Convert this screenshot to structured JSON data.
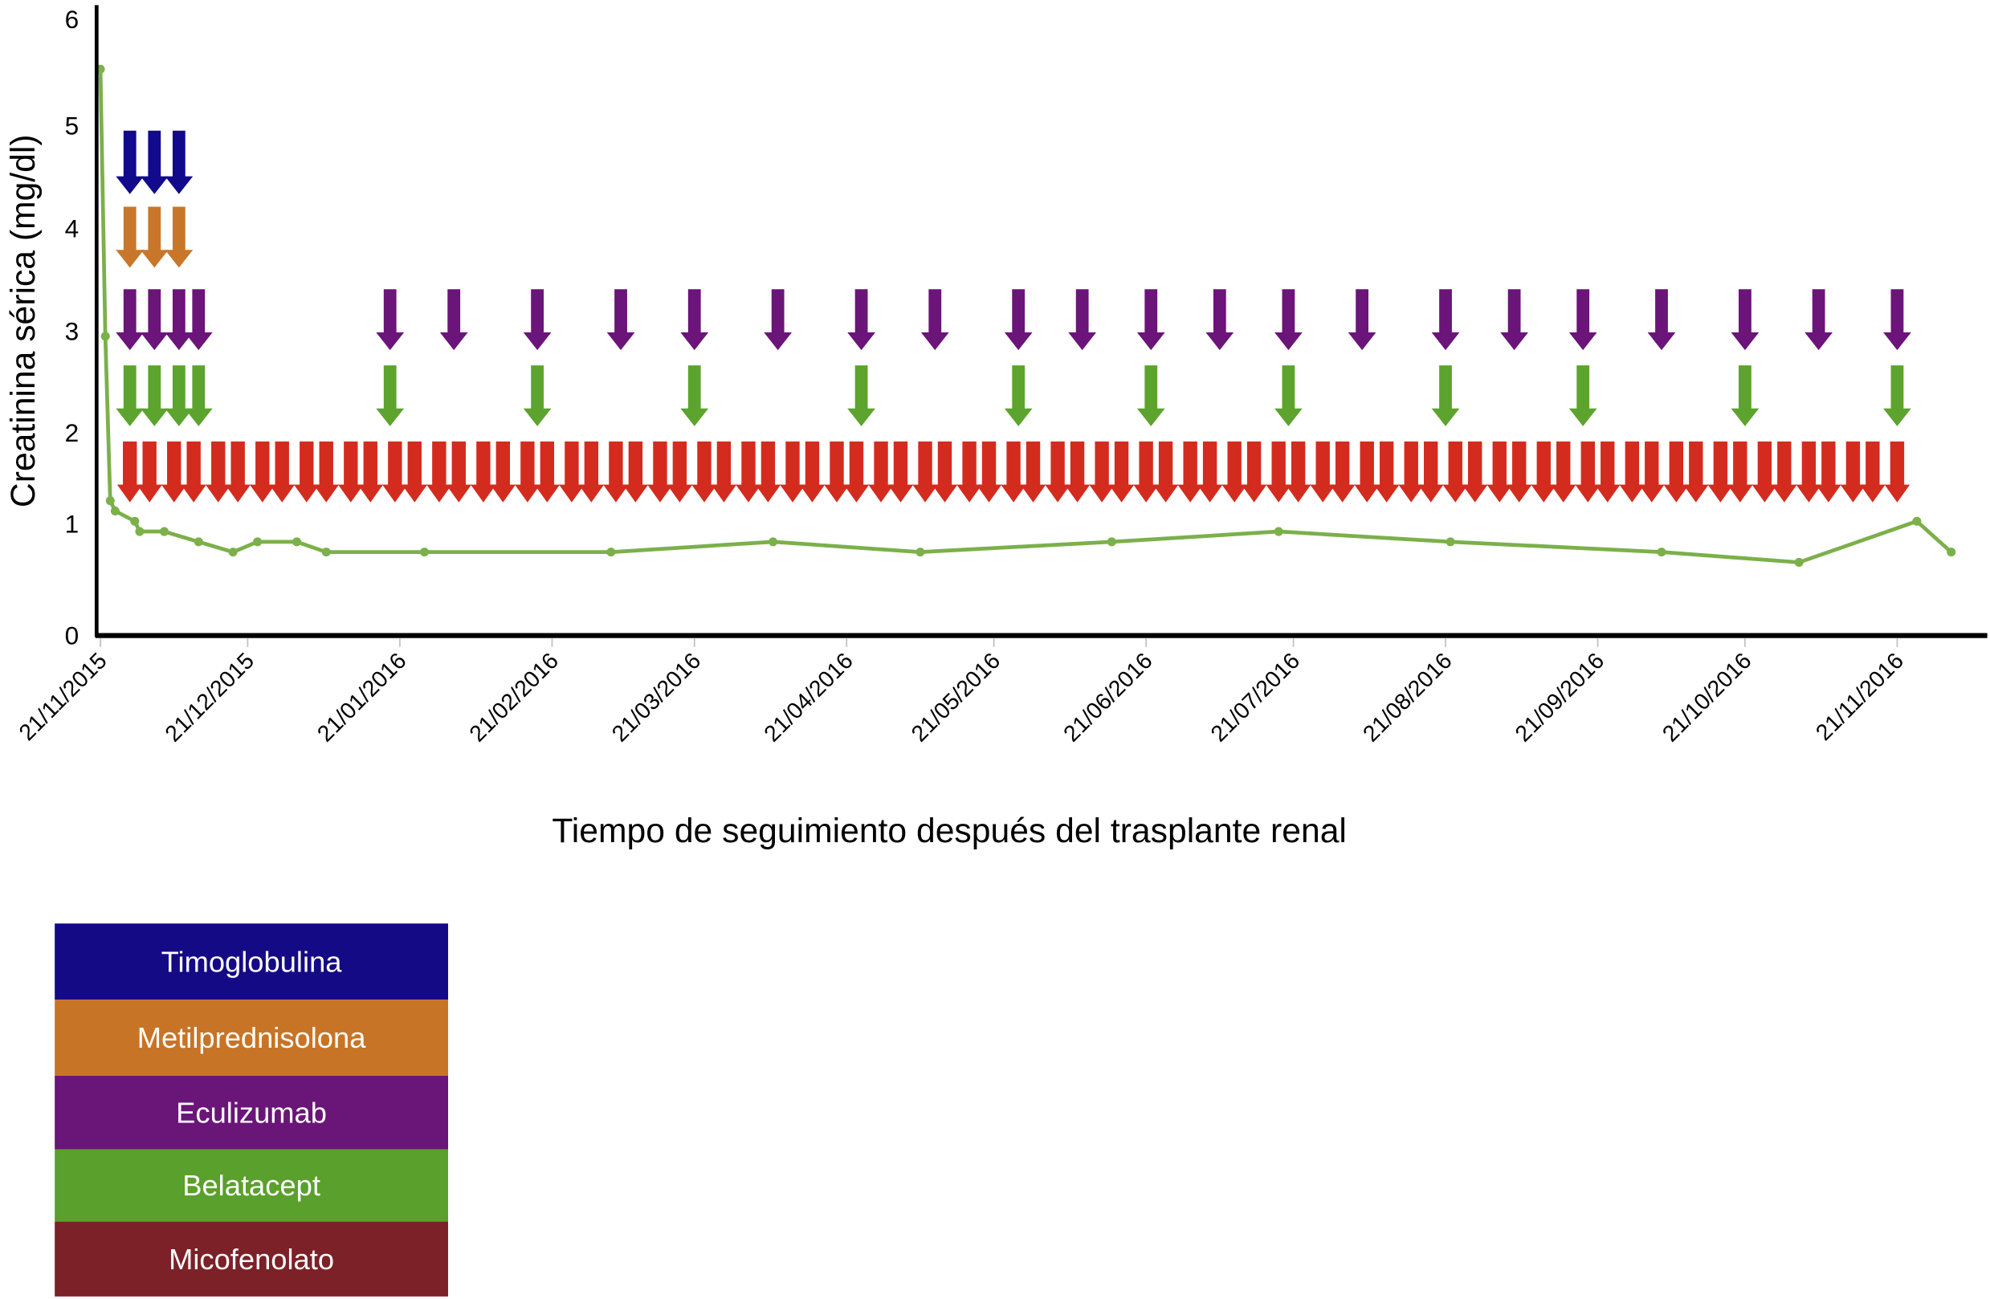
{
  "chart_data": {
    "type": "line",
    "xlabel": "Tiempo de seguimiento después del trasplante renal",
    "ylabel": "Creatinina sérica (mg/dl)",
    "ylim": [
      0,
      6
    ],
    "yticks": [
      "0",
      "1",
      "2",
      "3",
      "4",
      "5",
      "6"
    ],
    "xlim": [
      "21/11/2015",
      "06/12/2016"
    ],
    "xticks": [
      "21/11/2015",
      "21/12/2015",
      "21/01/2016",
      "21/02/2016",
      "21/03/2016",
      "21/04/2016",
      "21/05/2016",
      "21/06/2016",
      "21/07/2016",
      "21/08/2016",
      "21/09/2016",
      "21/10/2016",
      "21/11/2016"
    ],
    "grid": false,
    "line_color": "#7bb04a",
    "series": [
      {
        "x": [
          "21/11/2015",
          "22/11/2015",
          "23/11/2015",
          "24/11/2015",
          "28/11/2015",
          "29/11/2015",
          "04/12/2015",
          "11/12/2015",
          "18/12/2015",
          "23/12/2015",
          "31/12/2015",
          "06/01/2016",
          "26/01/2016",
          "04/03/2016",
          "06/04/2016",
          "06/05/2016",
          "14/06/2016",
          "18/07/2016",
          "22/08/2016",
          "04/10/2016",
          "01/11/2016",
          "25/11/2016",
          "02/12/2016"
        ],
        "y": [
          5.5,
          2.9,
          1.3,
          1.2,
          1.1,
          1.0,
          1.0,
          0.9,
          0.8,
          0.9,
          0.9,
          0.8,
          0.8,
          0.8,
          0.9,
          0.8,
          0.9,
          1.0,
          0.9,
          0.8,
          0.7,
          1.1,
          0.8
        ]
      }
    ],
    "treatments": [
      {
        "name": "Timoglobulina",
        "color": "#110a8c",
        "dates": [
          "27/11/2015",
          "02/12/2015",
          "07/12/2015"
        ]
      },
      {
        "name": "Metilprednisolona",
        "color": "#c8772a",
        "dates": [
          "27/11/2015",
          "02/12/2015",
          "07/12/2015"
        ]
      },
      {
        "name": "Eculizumab",
        "color": "#6b1479",
        "dates": [
          "27/11/2015",
          "02/12/2015",
          "07/12/2015",
          "11/12/2015",
          "19/01/2016",
          "01/02/2016",
          "18/02/2016",
          "06/03/2016",
          "21/03/2016",
          "07/04/2016",
          "24/04/2016",
          "09/05/2016",
          "26/05/2016",
          "08/06/2016",
          "22/06/2016",
          "06/07/2016",
          "20/07/2016",
          "04/08/2016",
          "21/08/2016",
          "04/09/2016",
          "18/09/2016",
          "04/10/2016",
          "21/10/2016",
          "05/11/2016",
          "21/11/2016"
        ]
      },
      {
        "name": "Belatacept",
        "color": "#5ca42d",
        "dates": [
          "27/11/2015",
          "02/12/2015",
          "07/12/2015",
          "11/12/2015",
          "19/01/2016",
          "18/02/2016",
          "21/03/2016",
          "24/04/2016",
          "26/05/2016",
          "22/06/2016",
          "20/07/2016",
          "21/08/2016",
          "18/09/2016",
          "21/10/2016",
          "21/11/2016"
        ]
      },
      {
        "name": "Micofenolato",
        "color": "#d42b1f",
        "dates": [
          "27/11/2015",
          "01/12/2015",
          "06/12/2015",
          "10/12/2015",
          "15/12/2015",
          "19/12/2015",
          "24/12/2015",
          "28/12/2015",
          "02/01/2016",
          "06/01/2016",
          "11/01/2016",
          "15/01/2016",
          "20/01/2016",
          "24/01/2016",
          "29/01/2016",
          "02/02/2016",
          "07/02/2016",
          "11/02/2016",
          "16/02/2016",
          "20/02/2016",
          "25/02/2016",
          "29/02/2016",
          "05/03/2016",
          "09/03/2016",
          "14/03/2016",
          "18/03/2016",
          "23/03/2016",
          "27/03/2016",
          "01/04/2016",
          "05/04/2016",
          "10/04/2016",
          "14/04/2016",
          "19/04/2016",
          "23/04/2016",
          "28/04/2016",
          "02/05/2016",
          "07/05/2016",
          "11/05/2016",
          "16/05/2016",
          "20/05/2016",
          "25/05/2016",
          "29/05/2016",
          "03/06/2016",
          "07/06/2016",
          "12/06/2016",
          "16/06/2016",
          "21/06/2016",
          "25/06/2016",
          "30/06/2016",
          "04/07/2016",
          "09/07/2016",
          "13/07/2016",
          "18/07/2016",
          "22/07/2016",
          "27/07/2016",
          "31/07/2016",
          "05/08/2016",
          "09/08/2016",
          "14/08/2016",
          "18/08/2016",
          "23/08/2016",
          "27/08/2016",
          "01/09/2016",
          "05/09/2016",
          "10/09/2016",
          "14/09/2016",
          "19/09/2016",
          "23/09/2016",
          "28/09/2016",
          "02/10/2016",
          "07/10/2016",
          "11/10/2016",
          "16/10/2016",
          "20/10/2016",
          "25/10/2016",
          "29/10/2016",
          "03/11/2016",
          "07/11/2016",
          "12/11/2016",
          "16/11/2016",
          "21/11/2016"
        ]
      }
    ],
    "legend": {
      "placement": "bottom-left",
      "entries": [
        {
          "label": "Timoglobulina",
          "color": "#150a85"
        },
        {
          "label": "Metilprednisolona",
          "color": "#c87426"
        },
        {
          "label": "Eculizumab",
          "color": "#6a1578"
        },
        {
          "label": "Belatacept",
          "color": "#5aa02c"
        },
        {
          "label": "Micofenolato",
          "color": "#7b2127"
        }
      ]
    }
  }
}
